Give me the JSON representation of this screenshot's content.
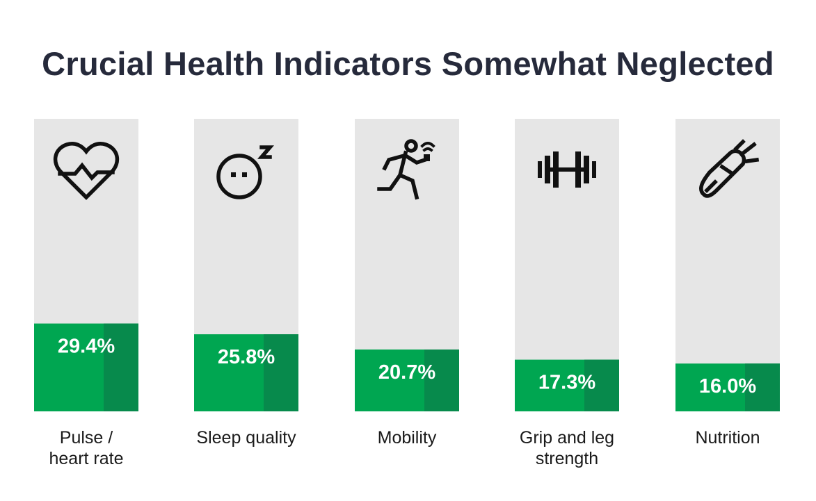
{
  "chart_data": {
    "type": "bar",
    "title": "Crucial Health Indicators Somewhat Neglected",
    "categories": [
      [
        "Pulse /",
        "heart rate"
      ],
      [
        "Sleep quality"
      ],
      [
        "Mobility"
      ],
      [
        "Grip and leg",
        "strength"
      ],
      [
        "Nutrition"
      ]
    ],
    "values": [
      29.4,
      25.8,
      20.7,
      17.3,
      16.0
    ],
    "value_labels": [
      "29.4%",
      "25.8%",
      "20.7%",
      "17.3%",
      "16.0%"
    ],
    "ylim": [
      0,
      100
    ],
    "icons": [
      "heart-pulse-icon",
      "sleep-face-icon",
      "running-person-icon",
      "dumbbell-icon",
      "carrot-icon"
    ],
    "colors": {
      "bar_fill": "#00a651",
      "bar_shadow": "#078a4c",
      "track": "#e6e6e6",
      "title": "#262a3b"
    }
  }
}
